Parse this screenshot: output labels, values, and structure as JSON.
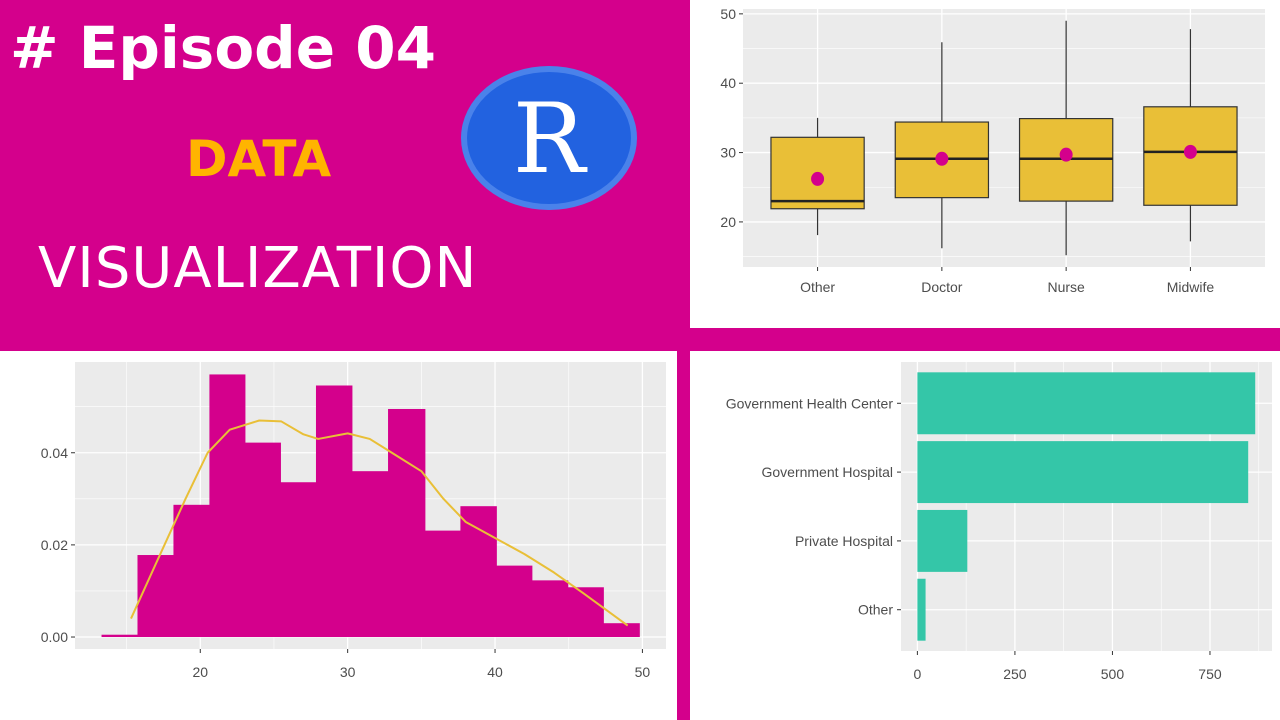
{
  "header": {
    "episode": "# Episode 04",
    "line1": "DATA",
    "line2": "VISUALIZATION",
    "logo_letter": "R"
  },
  "colors": {
    "background": "#d4008c",
    "data_text": "#ffb400",
    "logo_blue": "#2262e0",
    "box_fill": "#e9bf37",
    "mean_point": "#d4008c",
    "hist_fill": "#d4008c",
    "density_line": "#e9bf37",
    "bar_fill": "#34c6a8",
    "panel_bg": "#ebebeb"
  },
  "chart_data": [
    {
      "type": "boxplot",
      "categories": [
        "Other",
        "Doctor",
        "Nurse",
        "Midwife"
      ],
      "boxes": [
        {
          "min": 18.1,
          "q1": 21.9,
          "median": 23.0,
          "q3": 32.2,
          "max": 35.0,
          "mean": 26.2
        },
        {
          "min": 16.2,
          "q1": 23.5,
          "median": 29.1,
          "q3": 34.4,
          "max": 45.9,
          "mean": 29.1
        },
        {
          "min": 15.2,
          "q1": 23.0,
          "median": 29.1,
          "q3": 34.9,
          "max": 49.0,
          "mean": 29.7
        },
        {
          "min": 17.2,
          "q1": 22.4,
          "median": 30.1,
          "q3": 36.6,
          "max": 47.8,
          "mean": 30.1
        }
      ],
      "yticks": [
        "20",
        "30",
        "40",
        "50"
      ],
      "ylim": [
        13.5,
        50.7
      ],
      "grid": true
    },
    {
      "type": "bar",
      "subtype": "histogram",
      "bin_edges": [
        13.3,
        15.74,
        18.18,
        20.62,
        23.03,
        25.44,
        27.85,
        30.29,
        32.74,
        35.24,
        37.65,
        40.09,
        42.5,
        44.94,
        47.35,
        49.79
      ],
      "values": [
        0.0005,
        0.0178,
        0.0287,
        0.057,
        0.0422,
        0.0336,
        0.0546,
        0.036,
        0.0495,
        0.0231,
        0.0284,
        0.0155,
        0.0123,
        0.0108,
        0.003
      ],
      "density": {
        "x": [
          15.3,
          17,
          19,
          20.5,
          22,
          24,
          25.5,
          27,
          28,
          30,
          31.5,
          33,
          35,
          36.5,
          38,
          40,
          42,
          44,
          46,
          47.5,
          49
        ],
        "y": [
          0.004,
          0.016,
          0.03,
          0.04,
          0.045,
          0.047,
          0.0468,
          0.044,
          0.043,
          0.0442,
          0.043,
          0.04,
          0.036,
          0.03,
          0.025,
          0.0215,
          0.018,
          0.014,
          0.0095,
          0.006,
          0.0025
        ]
      },
      "xticks": [
        "20",
        "30",
        "40",
        "50"
      ],
      "yticks": [
        "0.00",
        "0.02",
        "0.04"
      ],
      "xlim": [
        11.5,
        51.6
      ],
      "ylim": [
        -0.0026,
        0.0597
      ],
      "grid": true
    },
    {
      "type": "bar",
      "orientation": "horizontal",
      "categories": [
        "Government Health Center",
        "Government Hospital",
        "Private Hospital",
        "Other"
      ],
      "values": [
        866,
        848,
        128,
        21
      ],
      "xticks": [
        "0",
        "250",
        "500",
        "750"
      ],
      "xlim": [
        -42,
        909
      ],
      "grid": true
    }
  ]
}
